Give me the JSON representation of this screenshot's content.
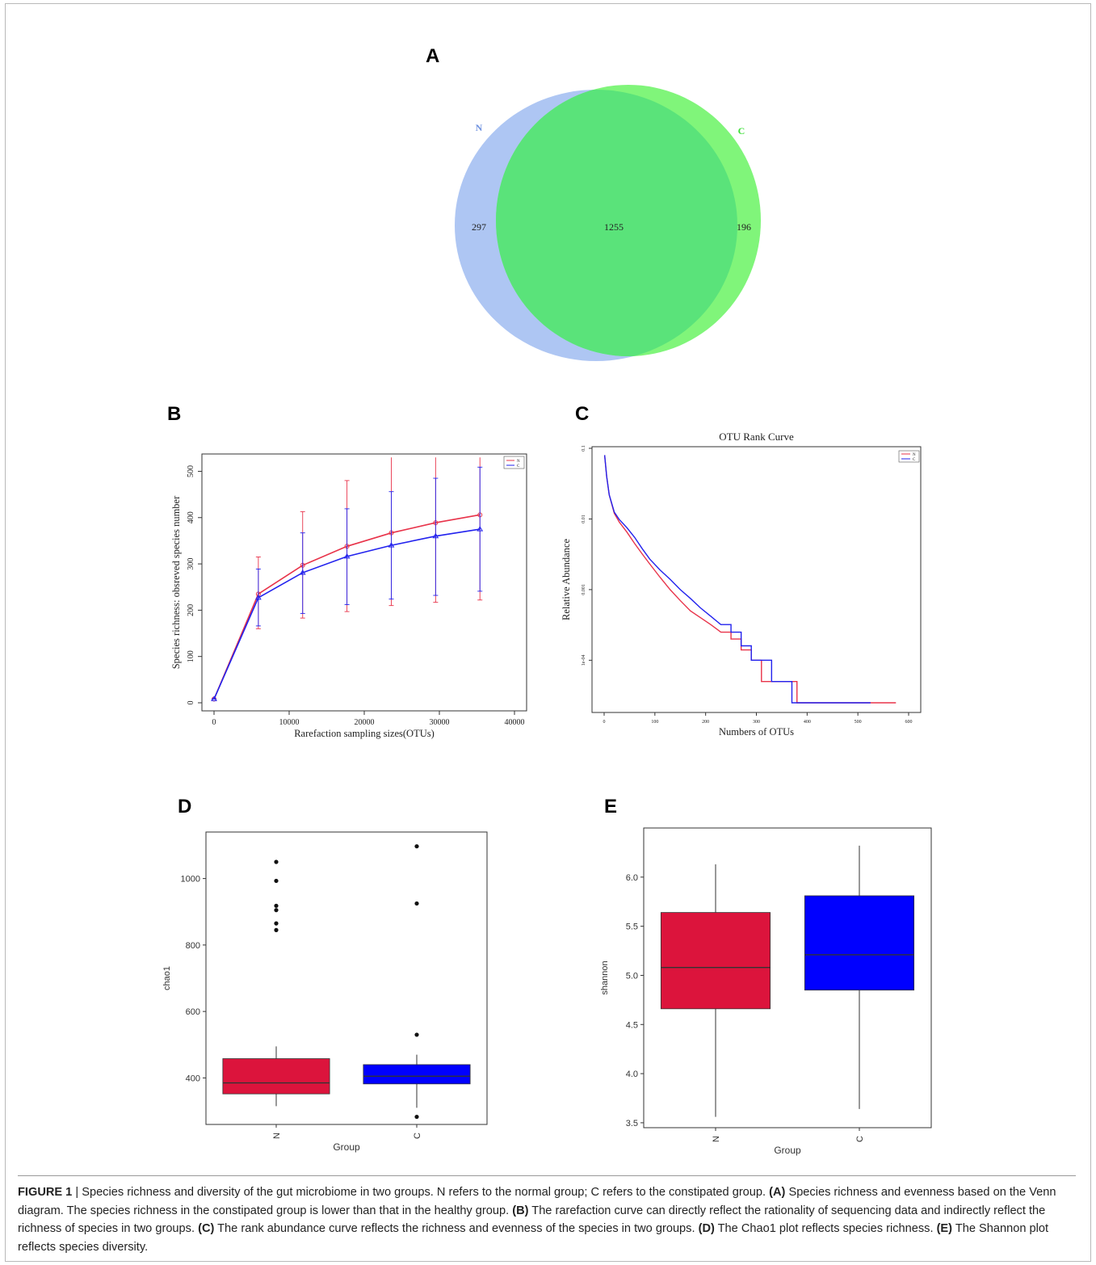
{
  "figure": {
    "panel_labels": [
      "A",
      "B",
      "C",
      "D",
      "E"
    ],
    "caption": {
      "lead": "FIGURE 1",
      "separator": " | ",
      "intro": "Species richness and diversity of the gut microbiome in two groups. N refers to the normal group; C refers to the constipated group. ",
      "items": [
        {
          "tag": "(A)",
          "text": " Species richness and evenness based on the Venn diagram. The species richness in the constipated group is lower than that in the healthy group. "
        },
        {
          "tag": "(B)",
          "text": " The rarefaction curve can directly reflect the rationality of sequencing data and indirectly reflect the richness of species in two groups. "
        },
        {
          "tag": "(C)",
          "text": " The rank abundance curve reflects the richness and evenness of the species in two groups. "
        },
        {
          "tag": "(D)",
          "text": " The Chao1 plot reflects species richness. "
        },
        {
          "tag": "(E)",
          "text": " The Shannon plot reflects species diversity."
        }
      ]
    }
  },
  "colors": {
    "N_venn": "#aec6f3",
    "C_venn": "#80f57a",
    "overlap": "#5ae37a",
    "red": "#e8334a",
    "blue": "#2222ee",
    "box_red": "#dc143c",
    "box_blue": "#0000ff"
  },
  "chart_data": [
    {
      "panel": "A",
      "type": "venn",
      "sets": [
        "N",
        "C"
      ],
      "regions": {
        "N_only": 297,
        "both": 1255,
        "C_only": 196
      }
    },
    {
      "panel": "B",
      "type": "line",
      "title": "",
      "xlabel": "Rarefaction sampling sizes(OTUs)",
      "ylabel": "Species richness: obsreved species number",
      "xlim": [
        0,
        40000
      ],
      "ylim": [
        0,
        520
      ],
      "xticks": [
        0,
        10000,
        20000,
        30000,
        40000
      ],
      "yticks": [
        0,
        100,
        200,
        300,
        400,
        500
      ],
      "legend": {
        "position": "top-right",
        "entries": [
          "N",
          "C"
        ]
      },
      "series": [
        {
          "name": "N",
          "color": "#e8334a",
          "x": [
            0,
            5900,
            11800,
            17700,
            23600,
            29500,
            35400
          ],
          "y": [
            8,
            235,
            297,
            338,
            367,
            389,
            406
          ],
          "err_low": [
            8,
            160,
            183,
            197,
            210,
            217,
            222
          ],
          "err_high": [
            8,
            315,
            413,
            480,
            530,
            530,
            530
          ]
        },
        {
          "name": "C",
          "color": "#2222ee",
          "x": [
            0,
            5900,
            11800,
            17700,
            23600,
            29500,
            35400
          ],
          "y": [
            8,
            227,
            281,
            316,
            340,
            360,
            375
          ],
          "err_low": [
            8,
            166,
            193,
            212,
            224,
            232,
            241
          ],
          "err_high": [
            8,
            289,
            367,
            419,
            456,
            485,
            509
          ]
        }
      ]
    },
    {
      "panel": "C",
      "type": "line",
      "title": "OTU Rank Curve",
      "xlabel": "Numbers of OTUs",
      "ylabel": "Relative Abundance",
      "xlim": [
        0,
        600
      ],
      "yscale": "log",
      "ylim": [
        2.5e-05,
        0.1
      ],
      "xticks": [
        0,
        100,
        200,
        300,
        400,
        500,
        600
      ],
      "yticks": [
        0.1,
        0.01,
        0.001,
        0.0001
      ],
      "ytick_labels": [
        "0.1",
        "0.01",
        "0.001",
        "1e-04"
      ],
      "legend": {
        "position": "top-right",
        "entries": [
          "N",
          "C"
        ]
      },
      "series": [
        {
          "name": "N",
          "color": "#e8334a",
          "x": [
            1,
            5,
            10,
            20,
            30,
            45,
            60,
            75,
            90,
            110,
            130,
            150,
            170,
            190,
            210,
            230,
            250,
            270,
            290,
            310,
            330,
            365,
            380,
            450,
            520,
            575
          ],
          "y": [
            0.08,
            0.04,
            0.022,
            0.012,
            0.009,
            0.0065,
            0.0045,
            0.0032,
            0.0023,
            0.0015,
            0.001,
            0.0007,
            0.0005,
            0.0004,
            0.00032,
            0.00025,
            0.0002,
            0.00014,
            0.0001,
            5e-05,
            5e-05,
            5e-05,
            2.5e-05,
            2.5e-05,
            2.5e-05,
            2.5e-05
          ]
        },
        {
          "name": "C",
          "color": "#2222ee",
          "x": [
            1,
            5,
            10,
            20,
            30,
            45,
            60,
            75,
            90,
            110,
            130,
            150,
            170,
            190,
            210,
            230,
            250,
            270,
            290,
            310,
            330,
            362,
            370,
            450,
            525
          ],
          "y": [
            0.08,
            0.04,
            0.022,
            0.0125,
            0.0098,
            0.0075,
            0.0055,
            0.0038,
            0.0027,
            0.0019,
            0.0014,
            0.001,
            0.00075,
            0.00055,
            0.00042,
            0.00032,
            0.00025,
            0.00016,
            0.0001,
            0.0001,
            5e-05,
            5e-05,
            2.5e-05,
            2.5e-05,
            2.5e-05
          ]
        }
      ]
    },
    {
      "panel": "D",
      "type": "box",
      "title": "",
      "xlabel": "Group",
      "ylabel": "chao1",
      "ylim": [
        260,
        1140
      ],
      "yticks": [
        400,
        600,
        800,
        1000
      ],
      "categories": [
        "N",
        "C"
      ],
      "boxes": [
        {
          "name": "N",
          "color": "#dc143c",
          "whisker_low": 315,
          "q1": 352,
          "median": 385,
          "q3": 458,
          "whisker_high": 495,
          "outliers": [
            845,
            865,
            905,
            918,
            993,
            1050
          ]
        },
        {
          "name": "C",
          "color": "#0000ff",
          "whisker_low": 310,
          "q1": 382,
          "median": 405,
          "q3": 440,
          "whisker_high": 470,
          "outliers": [
            283,
            530,
            925,
            1097
          ]
        }
      ]
    },
    {
      "panel": "E",
      "type": "box",
      "title": "",
      "xlabel": "Group",
      "ylabel": "shannon",
      "ylim": [
        3.45,
        6.5
      ],
      "yticks": [
        3.5,
        4.0,
        4.5,
        5.0,
        5.5,
        6.0
      ],
      "ytick_labels": [
        "3.5",
        "4.0",
        "4.5",
        "5.0",
        "5.5",
        "6.0"
      ],
      "categories": [
        "N",
        "C"
      ],
      "boxes": [
        {
          "name": "N",
          "color": "#dc143c",
          "whisker_low": 3.56,
          "q1": 4.66,
          "median": 5.08,
          "q3": 5.64,
          "whisker_high": 6.13,
          "outliers": []
        },
        {
          "name": "C",
          "color": "#0000ff",
          "whisker_low": 3.64,
          "q1": 4.85,
          "median": 5.21,
          "q3": 5.81,
          "whisker_high": 6.32,
          "outliers": []
        }
      ]
    }
  ]
}
